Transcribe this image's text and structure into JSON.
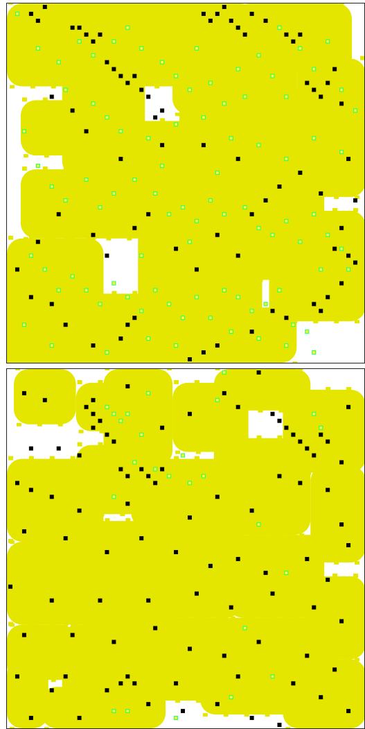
{
  "colors": {
    "background": "#ffffff",
    "region": "#e5e600",
    "agent": "#000000",
    "food_border": "#33ff66",
    "food_fill": "#ffff33",
    "frame": "#222222"
  },
  "panels": [
    {
      "name": "panel-top",
      "regions": [
        [
          0,
          0,
          34,
          12
        ],
        [
          2,
          14,
          13,
          8
        ],
        [
          8,
          6,
          12,
          19
        ],
        [
          14,
          0,
          22,
          10
        ],
        [
          24,
          2,
          18,
          14
        ],
        [
          33,
          0,
          17,
          10
        ],
        [
          42,
          8,
          10,
          12
        ],
        [
          2,
          24,
          30,
          10
        ],
        [
          13,
          17,
          19,
          16
        ],
        [
          25,
          12,
          18,
          14
        ],
        [
          38,
          14,
          14,
          14
        ],
        [
          0,
          34,
          14,
          20
        ],
        [
          9,
          42,
          16,
          18
        ],
        [
          19,
          30,
          18,
          18
        ],
        [
          30,
          26,
          16,
          14
        ],
        [
          38,
          30,
          14,
          16
        ],
        [
          16,
          44,
          20,
          8
        ],
        [
          1,
          48,
          14,
          4
        ],
        [
          26,
          44,
          16,
          8
        ],
        [
          10,
          50,
          18,
          2
        ]
      ],
      "agents": [
        [
          5,
          0
        ],
        [
          3,
          1
        ],
        [
          4,
          2
        ],
        [
          9,
          3
        ],
        [
          10,
          3
        ],
        [
          11,
          4
        ],
        [
          12,
          5
        ],
        [
          13,
          4
        ],
        [
          14,
          8
        ],
        [
          15,
          9
        ],
        [
          16,
          10
        ],
        [
          17,
          11
        ],
        [
          18,
          10
        ],
        [
          19,
          12
        ],
        [
          20,
          13
        ],
        [
          21,
          16
        ],
        [
          22,
          15
        ],
        [
          28,
          1
        ],
        [
          29,
          2
        ],
        [
          30,
          1
        ],
        [
          31,
          0
        ],
        [
          32,
          2
        ],
        [
          33,
          3
        ],
        [
          34,
          4
        ],
        [
          35,
          1
        ],
        [
          37,
          2
        ],
        [
          40,
          4
        ],
        [
          41,
          5
        ],
        [
          42,
          4
        ],
        [
          43,
          11
        ],
        [
          44,
          12
        ],
        [
          45,
          13
        ],
        [
          46,
          11
        ],
        [
          47,
          9
        ],
        [
          48,
          14
        ],
        [
          49,
          22
        ],
        [
          50,
          28
        ],
        [
          48,
          32
        ],
        [
          47,
          35
        ],
        [
          49,
          36
        ],
        [
          50,
          37
        ],
        [
          48,
          40
        ],
        [
          46,
          42
        ],
        [
          45,
          44
        ],
        [
          44,
          43
        ],
        [
          40,
          45
        ],
        [
          38,
          44
        ],
        [
          35,
          47
        ],
        [
          30,
          49
        ],
        [
          28,
          50
        ],
        [
          26,
          51
        ],
        [
          18,
          45
        ],
        [
          17,
          46
        ],
        [
          16,
          48
        ],
        [
          12,
          49
        ],
        [
          8,
          46
        ],
        [
          6,
          43
        ],
        [
          3,
          42
        ],
        [
          1,
          38
        ],
        [
          4,
          34
        ],
        [
          7,
          30
        ],
        [
          12,
          33
        ],
        [
          14,
          36
        ],
        [
          18,
          32
        ],
        [
          20,
          30
        ],
        [
          24,
          35
        ],
        [
          27,
          38
        ],
        [
          30,
          33
        ],
        [
          33,
          36
        ],
        [
          35,
          30
        ],
        [
          37,
          28
        ],
        [
          39,
          26
        ],
        [
          42,
          24
        ],
        [
          45,
          27
        ],
        [
          16,
          22
        ],
        [
          22,
          20
        ],
        [
          33,
          22
        ],
        [
          28,
          20
        ],
        [
          9,
          15
        ],
        [
          6,
          13
        ],
        [
          11,
          18
        ]
      ],
      "food": [
        [
          1,
          1
        ],
        [
          4,
          6
        ],
        [
          7,
          8
        ],
        [
          10,
          5
        ],
        [
          12,
          7
        ],
        [
          15,
          5
        ],
        [
          17,
          3
        ],
        [
          19,
          6
        ],
        [
          22,
          8
        ],
        [
          24,
          10
        ],
        [
          26,
          12
        ],
        [
          29,
          11
        ],
        [
          31,
          14
        ],
        [
          33,
          9
        ],
        [
          36,
          7
        ],
        [
          38,
          10
        ],
        [
          40,
          13
        ],
        [
          42,
          6
        ],
        [
          44,
          9
        ],
        [
          46,
          5
        ],
        [
          48,
          12
        ],
        [
          50,
          15
        ],
        [
          2,
          18
        ],
        [
          4,
          23
        ],
        [
          6,
          26
        ],
        [
          8,
          28
        ],
        [
          11,
          25
        ],
        [
          13,
          29
        ],
        [
          15,
          27
        ],
        [
          18,
          25
        ],
        [
          21,
          27
        ],
        [
          23,
          30
        ],
        [
          25,
          29
        ],
        [
          27,
          31
        ],
        [
          29,
          28
        ],
        [
          31,
          30
        ],
        [
          34,
          29
        ],
        [
          36,
          32
        ],
        [
          38,
          33
        ],
        [
          40,
          31
        ],
        [
          42,
          34
        ],
        [
          44,
          30
        ],
        [
          46,
          33
        ],
        [
          48,
          35
        ],
        [
          49,
          38
        ],
        [
          3,
          36
        ],
        [
          5,
          38
        ],
        [
          7,
          41
        ],
        [
          9,
          39
        ],
        [
          11,
          41
        ],
        [
          13,
          43
        ],
        [
          15,
          40
        ],
        [
          17,
          42
        ],
        [
          19,
          44
        ],
        [
          21,
          41
        ],
        [
          23,
          43
        ],
        [
          25,
          45
        ],
        [
          27,
          42
        ],
        [
          29,
          45
        ],
        [
          31,
          41
        ],
        [
          33,
          42
        ],
        [
          35,
          44
        ],
        [
          37,
          43
        ],
        [
          39,
          41
        ],
        [
          41,
          46
        ],
        [
          43,
          47
        ],
        [
          2,
          46
        ],
        [
          6,
          49
        ],
        [
          14,
          50
        ],
        [
          20,
          48
        ],
        [
          24,
          49
        ],
        [
          32,
          47
        ],
        [
          36,
          48
        ],
        [
          40,
          49
        ],
        [
          44,
          50
        ],
        [
          12,
          14
        ],
        [
          14,
          16
        ],
        [
          16,
          18
        ],
        [
          20,
          19
        ],
        [
          24,
          17
        ],
        [
          28,
          16
        ],
        [
          32,
          19
        ],
        [
          36,
          20
        ],
        [
          40,
          22
        ],
        [
          44,
          19
        ],
        [
          48,
          21
        ],
        [
          22,
          23
        ],
        [
          30,
          24
        ],
        [
          26,
          34
        ],
        [
          19,
          36
        ],
        [
          45,
          38
        ],
        [
          34,
          13
        ],
        [
          39,
          3
        ],
        [
          27,
          6
        ],
        [
          8,
          12
        ]
      ]
    },
    {
      "name": "panel-bottom",
      "regions": [
        [
          1,
          0,
          9,
          8
        ],
        [
          10,
          2,
          6,
          7
        ],
        [
          14,
          0,
          10,
          14
        ],
        [
          24,
          2,
          11,
          10
        ],
        [
          30,
          0,
          14,
          6
        ],
        [
          40,
          3,
          12,
          12
        ],
        [
          0,
          13,
          14,
          12
        ],
        [
          10,
          11,
          10,
          10
        ],
        [
          18,
          13,
          16,
          10
        ],
        [
          30,
          10,
          14,
          14
        ],
        [
          0,
          25,
          16,
          12
        ],
        [
          11,
          22,
          14,
          16
        ],
        [
          22,
          22,
          12,
          14
        ],
        [
          32,
          24,
          14,
          12
        ],
        [
          44,
          14,
          8,
          14
        ],
        [
          44,
          30,
          8,
          12
        ],
        [
          0,
          37,
          10,
          8
        ],
        [
          8,
          37,
          12,
          14
        ],
        [
          18,
          36,
          14,
          12
        ],
        [
          28,
          36,
          18,
          14
        ],
        [
          40,
          42,
          12,
          10
        ],
        [
          5,
          46,
          18,
          6
        ],
        [
          0,
          42,
          6,
          10
        ]
      ],
      "agents": [
        [
          2,
          3
        ],
        [
          5,
          4
        ],
        [
          12,
          4
        ],
        [
          11,
          5
        ],
        [
          12,
          6
        ],
        [
          13,
          7
        ],
        [
          12,
          8
        ],
        [
          14,
          9
        ],
        [
          15,
          10
        ],
        [
          17,
          2
        ],
        [
          22,
          8
        ],
        [
          26,
          6
        ],
        [
          31,
          3
        ],
        [
          33,
          5
        ],
        [
          36,
          0
        ],
        [
          38,
          6
        ],
        [
          39,
          7
        ],
        [
          40,
          8
        ],
        [
          41,
          9
        ],
        [
          42,
          10
        ],
        [
          43,
          11
        ],
        [
          44,
          12
        ],
        [
          45,
          9
        ],
        [
          46,
          10
        ],
        [
          49,
          5
        ],
        [
          48,
          13
        ],
        [
          3,
          11
        ],
        [
          7,
          11
        ],
        [
          10,
          12
        ],
        [
          16,
          14
        ],
        [
          17,
          15
        ],
        [
          19,
          14
        ],
        [
          20,
          15
        ],
        [
          21,
          16
        ],
        [
          22,
          14
        ],
        [
          1,
          16
        ],
        [
          3,
          17
        ],
        [
          6,
          18
        ],
        [
          10,
          20
        ],
        [
          17,
          19
        ],
        [
          26,
          21
        ],
        [
          30,
          18
        ],
        [
          35,
          20
        ],
        [
          39,
          15
        ],
        [
          42,
          16
        ],
        [
          46,
          17
        ],
        [
          48,
          22
        ],
        [
          49,
          25
        ],
        [
          2,
          23
        ],
        [
          8,
          24
        ],
        [
          14,
          26
        ],
        [
          19,
          24
        ],
        [
          24,
          26
        ],
        [
          29,
          28
        ],
        [
          33,
          27
        ],
        [
          37,
          29
        ],
        [
          43,
          27
        ],
        [
          46,
          30
        ],
        [
          0,
          31
        ],
        [
          6,
          33
        ],
        [
          13,
          33
        ],
        [
          20,
          33
        ],
        [
          27,
          32
        ],
        [
          32,
          34
        ],
        [
          38,
          32
        ],
        [
          44,
          34
        ],
        [
          48,
          36
        ],
        [
          2,
          38
        ],
        [
          9,
          38
        ],
        [
          15,
          39
        ],
        [
          21,
          37
        ],
        [
          26,
          40
        ],
        [
          31,
          41
        ],
        [
          36,
          39
        ],
        [
          43,
          41
        ],
        [
          47,
          43
        ],
        [
          1,
          44
        ],
        [
          8,
          44
        ],
        [
          14,
          46
        ],
        [
          20,
          48
        ],
        [
          25,
          49
        ],
        [
          30,
          48
        ],
        [
          35,
          50
        ],
        [
          39,
          51
        ],
        [
          45,
          47
        ],
        [
          49,
          49
        ],
        [
          17,
          44
        ],
        [
          18,
          45
        ],
        [
          16,
          45
        ],
        [
          10,
          50
        ],
        [
          24,
          45
        ],
        [
          33,
          44
        ],
        [
          41,
          45
        ],
        [
          3,
          50
        ],
        [
          6,
          46
        ]
      ],
      "food": [
        [
          31,
          0
        ],
        [
          14,
          5
        ],
        [
          15,
          6
        ],
        [
          16,
          7
        ],
        [
          17,
          6
        ],
        [
          20,
          3
        ],
        [
          19,
          9
        ],
        [
          21,
          14
        ],
        [
          23,
          15
        ],
        [
          25,
          12
        ],
        [
          26,
          16
        ],
        [
          28,
          15
        ],
        [
          30,
          4
        ],
        [
          15,
          18
        ],
        [
          18,
          13
        ],
        [
          41,
          9
        ],
        [
          44,
          6
        ],
        [
          45,
          8
        ],
        [
          36,
          22
        ],
        [
          40,
          29
        ],
        [
          32,
          47
        ],
        [
          15,
          49
        ],
        [
          17,
          49
        ],
        [
          24,
          50
        ],
        [
          38,
          44
        ],
        [
          34,
          37
        ]
      ]
    }
  ]
}
